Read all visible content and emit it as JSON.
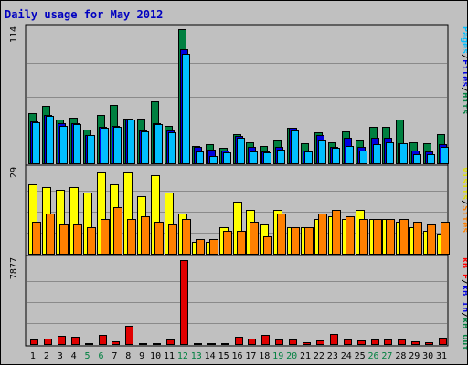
{
  "chart_data": {
    "type": "bar",
    "title": "Daily usage for May 2012",
    "categories": [
      "1",
      "2",
      "3",
      "4",
      "5",
      "6",
      "7",
      "8",
      "9",
      "10",
      "11",
      "12",
      "13",
      "14",
      "15",
      "16",
      "17",
      "18",
      "19",
      "20",
      "21",
      "22",
      "23",
      "24",
      "25",
      "26",
      "27",
      "28",
      "29",
      "30",
      "31"
    ],
    "weekend_days": [
      "5",
      "6",
      "12",
      "13",
      "19",
      "20",
      "26",
      "27"
    ],
    "panels": [
      {
        "id": "top",
        "ymax": 114,
        "ylabel": "114",
        "right_label": [
          "Pages",
          "/",
          "Files",
          "/",
          "Hits"
        ],
        "right_label_colors": [
          "#00bfff",
          "#000000",
          "#0000e0",
          "#000000",
          "#008040"
        ],
        "series": [
          {
            "name": "Hits",
            "color": "#008040",
            "values": [
              43,
              49,
              37,
              39,
              29,
              41,
              50,
              38,
              38,
              53,
              32,
              114,
              15,
              16,
              13,
              25,
              18,
              15,
              20,
              30,
              17,
              26,
              18,
              27,
              20,
              31,
              31,
              37,
              18,
              17,
              25
            ]
          },
          {
            "name": "Files",
            "color": "#0000e0",
            "values": [
              36,
              41,
              34,
              34,
              24,
              31,
              32,
              38,
              28,
              34,
              28,
              97,
              14,
              12,
              11,
              23,
              14,
              10,
              14,
              30,
              11,
              24,
              14,
              22,
              14,
              22,
              22,
              17,
              11,
              10,
              16
            ]
          },
          {
            "name": "Pages",
            "color": "#00bfff",
            "values": [
              35,
              40,
              32,
              33,
              24,
              30,
              31,
              37,
              27,
              33,
              26,
              93,
              10,
              6,
              9,
              22,
              10,
              9,
              12,
              28,
              10,
              20,
              13,
              15,
              11,
              16,
              18,
              17,
              8,
              8,
              14
            ]
          }
        ]
      },
      {
        "id": "middle",
        "ymax": 29,
        "ylabel": "29",
        "right_label": [
          "Visits",
          "/",
          "Sites"
        ],
        "right_label_colors": [
          "#e0e000",
          "#000000",
          "#ff8000"
        ],
        "series": [
          {
            "name": "Visits",
            "color": "#ffff00",
            "values": [
              24,
              23,
              22,
              23,
              21,
              28,
              24,
              28,
              20,
              27,
              21,
              14,
              4,
              4,
              9,
              18,
              15,
              10,
              15,
              9,
              9,
              12,
              13,
              12,
              15,
              12,
              12,
              11,
              9,
              8,
              7
            ]
          },
          {
            "name": "Sites",
            "color": "#ff8000",
            "values": [
              11,
              14,
              10,
              10,
              9,
              12,
              16,
              12,
              13,
              11,
              10,
              12,
              5,
              5,
              8,
              8,
              11,
              6,
              14,
              9,
              9,
              14,
              15,
              13,
              12,
              12,
              12,
              12,
              11,
              10,
              11
            ]
          }
        ]
      },
      {
        "id": "bottom",
        "ymax": 7877,
        "ylabel": "7877",
        "right_label": [
          "kB F",
          "/",
          "kB In",
          "/",
          "kB Out"
        ],
        "right_label_colors": [
          "#ff0000",
          "#000000",
          "#0000e0",
          "#000000",
          "#008040"
        ],
        "series": [
          {
            "name": "kB F",
            "color": "#e00000",
            "values": [
              400,
              550,
              750,
              650,
              100,
              850,
              250,
              1750,
              60,
              60,
              400,
              7877,
              60,
              60,
              60,
              700,
              500,
              850,
              450,
              450,
              200,
              300,
              900,
              450,
              350,
              400,
              450,
              450,
              250,
              150,
              600
            ]
          }
        ]
      }
    ]
  }
}
